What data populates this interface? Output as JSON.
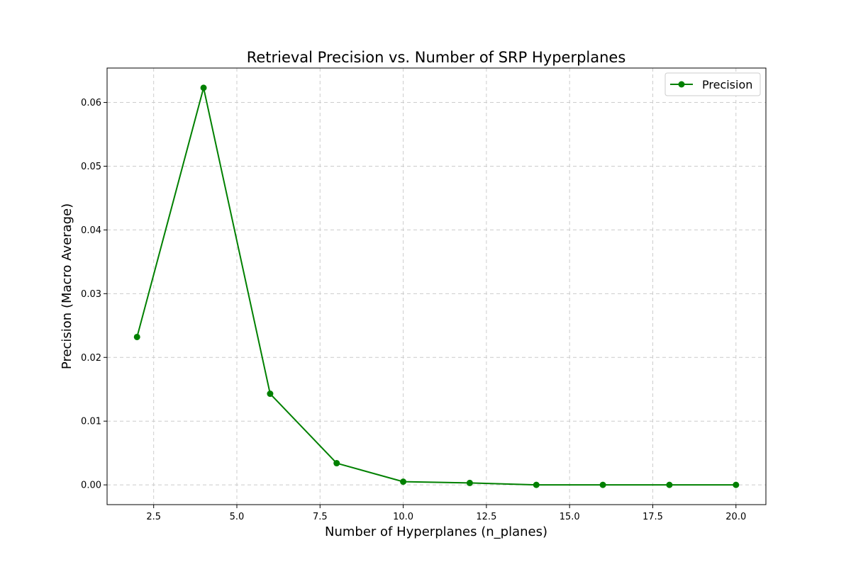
{
  "chart_data": {
    "type": "line",
    "title": "Retrieval Precision vs. Number of SRP Hyperplanes",
    "xlabel": "Number of Hyperplanes (n_planes)",
    "ylabel": "Precision (Macro Average)",
    "x": [
      2,
      4,
      6,
      8,
      10,
      12,
      14,
      16,
      18,
      20
    ],
    "series": [
      {
        "name": "Precision",
        "color": "#008000",
        "marker": "circle",
        "values": [
          0.0232,
          0.0623,
          0.0143,
          0.0034,
          0.0005,
          0.0003,
          0.0,
          0.0,
          0.0,
          0.0
        ]
      }
    ],
    "xlim": [
      1.1,
      20.9
    ],
    "ylim": [
      -0.0031,
      0.0654
    ],
    "xticks": [
      2.5,
      5.0,
      7.5,
      10.0,
      12.5,
      15.0,
      17.5,
      20.0
    ],
    "xtick_labels": [
      "2.5",
      "5.0",
      "7.5",
      "10.0",
      "12.5",
      "15.0",
      "17.5",
      "20.0"
    ],
    "yticks": [
      0.0,
      0.01,
      0.02,
      0.03,
      0.04,
      0.05,
      0.06
    ],
    "ytick_labels": [
      "0.00",
      "0.01",
      "0.02",
      "0.03",
      "0.04",
      "0.05",
      "0.06"
    ],
    "grid": true,
    "legend_position": "top-right"
  }
}
